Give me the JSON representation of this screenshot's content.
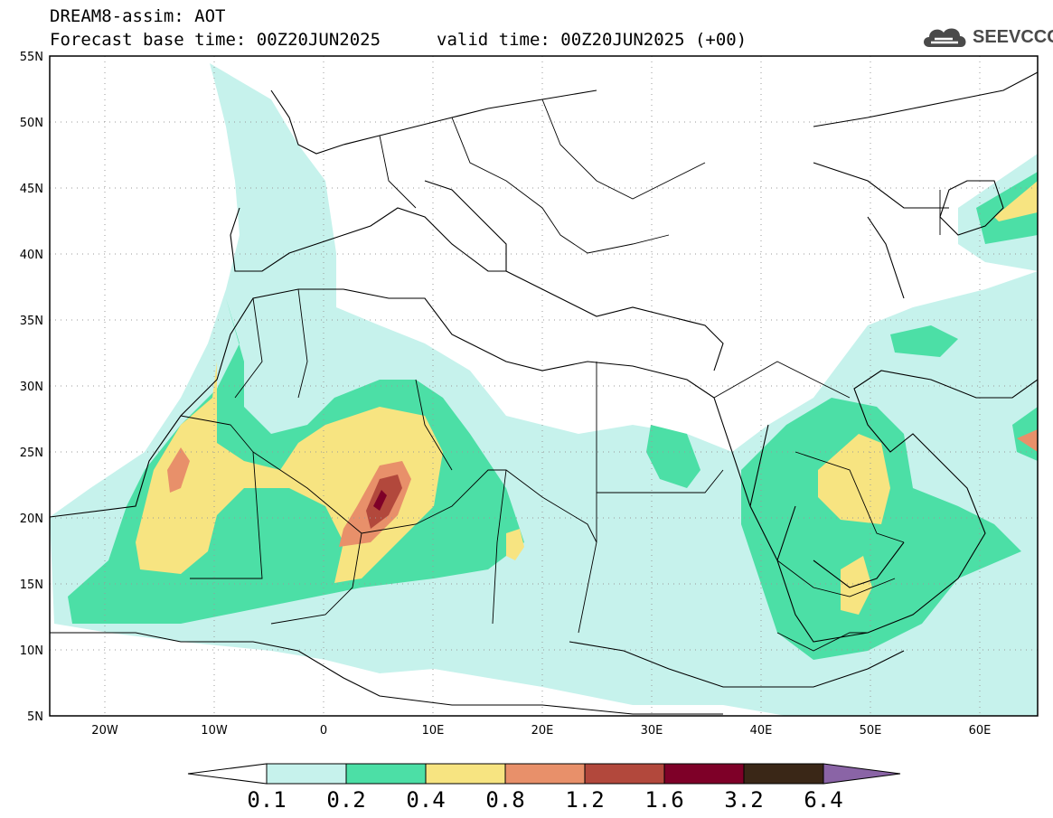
{
  "header": {
    "title_line1": "DREAM8-assim: AOT",
    "title_line2": "Forecast base time: 00Z20JUN2025",
    "valid": "valid time: 00Z20JUN2025 (+00)",
    "logo_text": "SEEVCCC"
  },
  "map": {
    "lon_range": [
      -25,
      65
    ],
    "lat_range": [
      5,
      55
    ],
    "lat_labels": [
      "55N",
      "50N",
      "45N",
      "40N",
      "35N",
      "30N",
      "25N",
      "20N",
      "15N",
      "10N",
      "5N"
    ],
    "lon_labels": [
      "20W",
      "10W",
      "0",
      "10E",
      "20E",
      "30E",
      "40E",
      "50E",
      "60E"
    ],
    "gridlines": true
  },
  "colorbar": {
    "labels": [
      "0.1",
      "0.2",
      "0.4",
      "0.8",
      "1.2",
      "1.6",
      "3.2",
      "6.4"
    ],
    "colors": [
      "#c6f2ec",
      "#4cdfa6",
      "#f7e481",
      "#e8906a",
      "#b2483c",
      "#7e0028",
      "#3a2717",
      "#8a64a6"
    ]
  }
}
